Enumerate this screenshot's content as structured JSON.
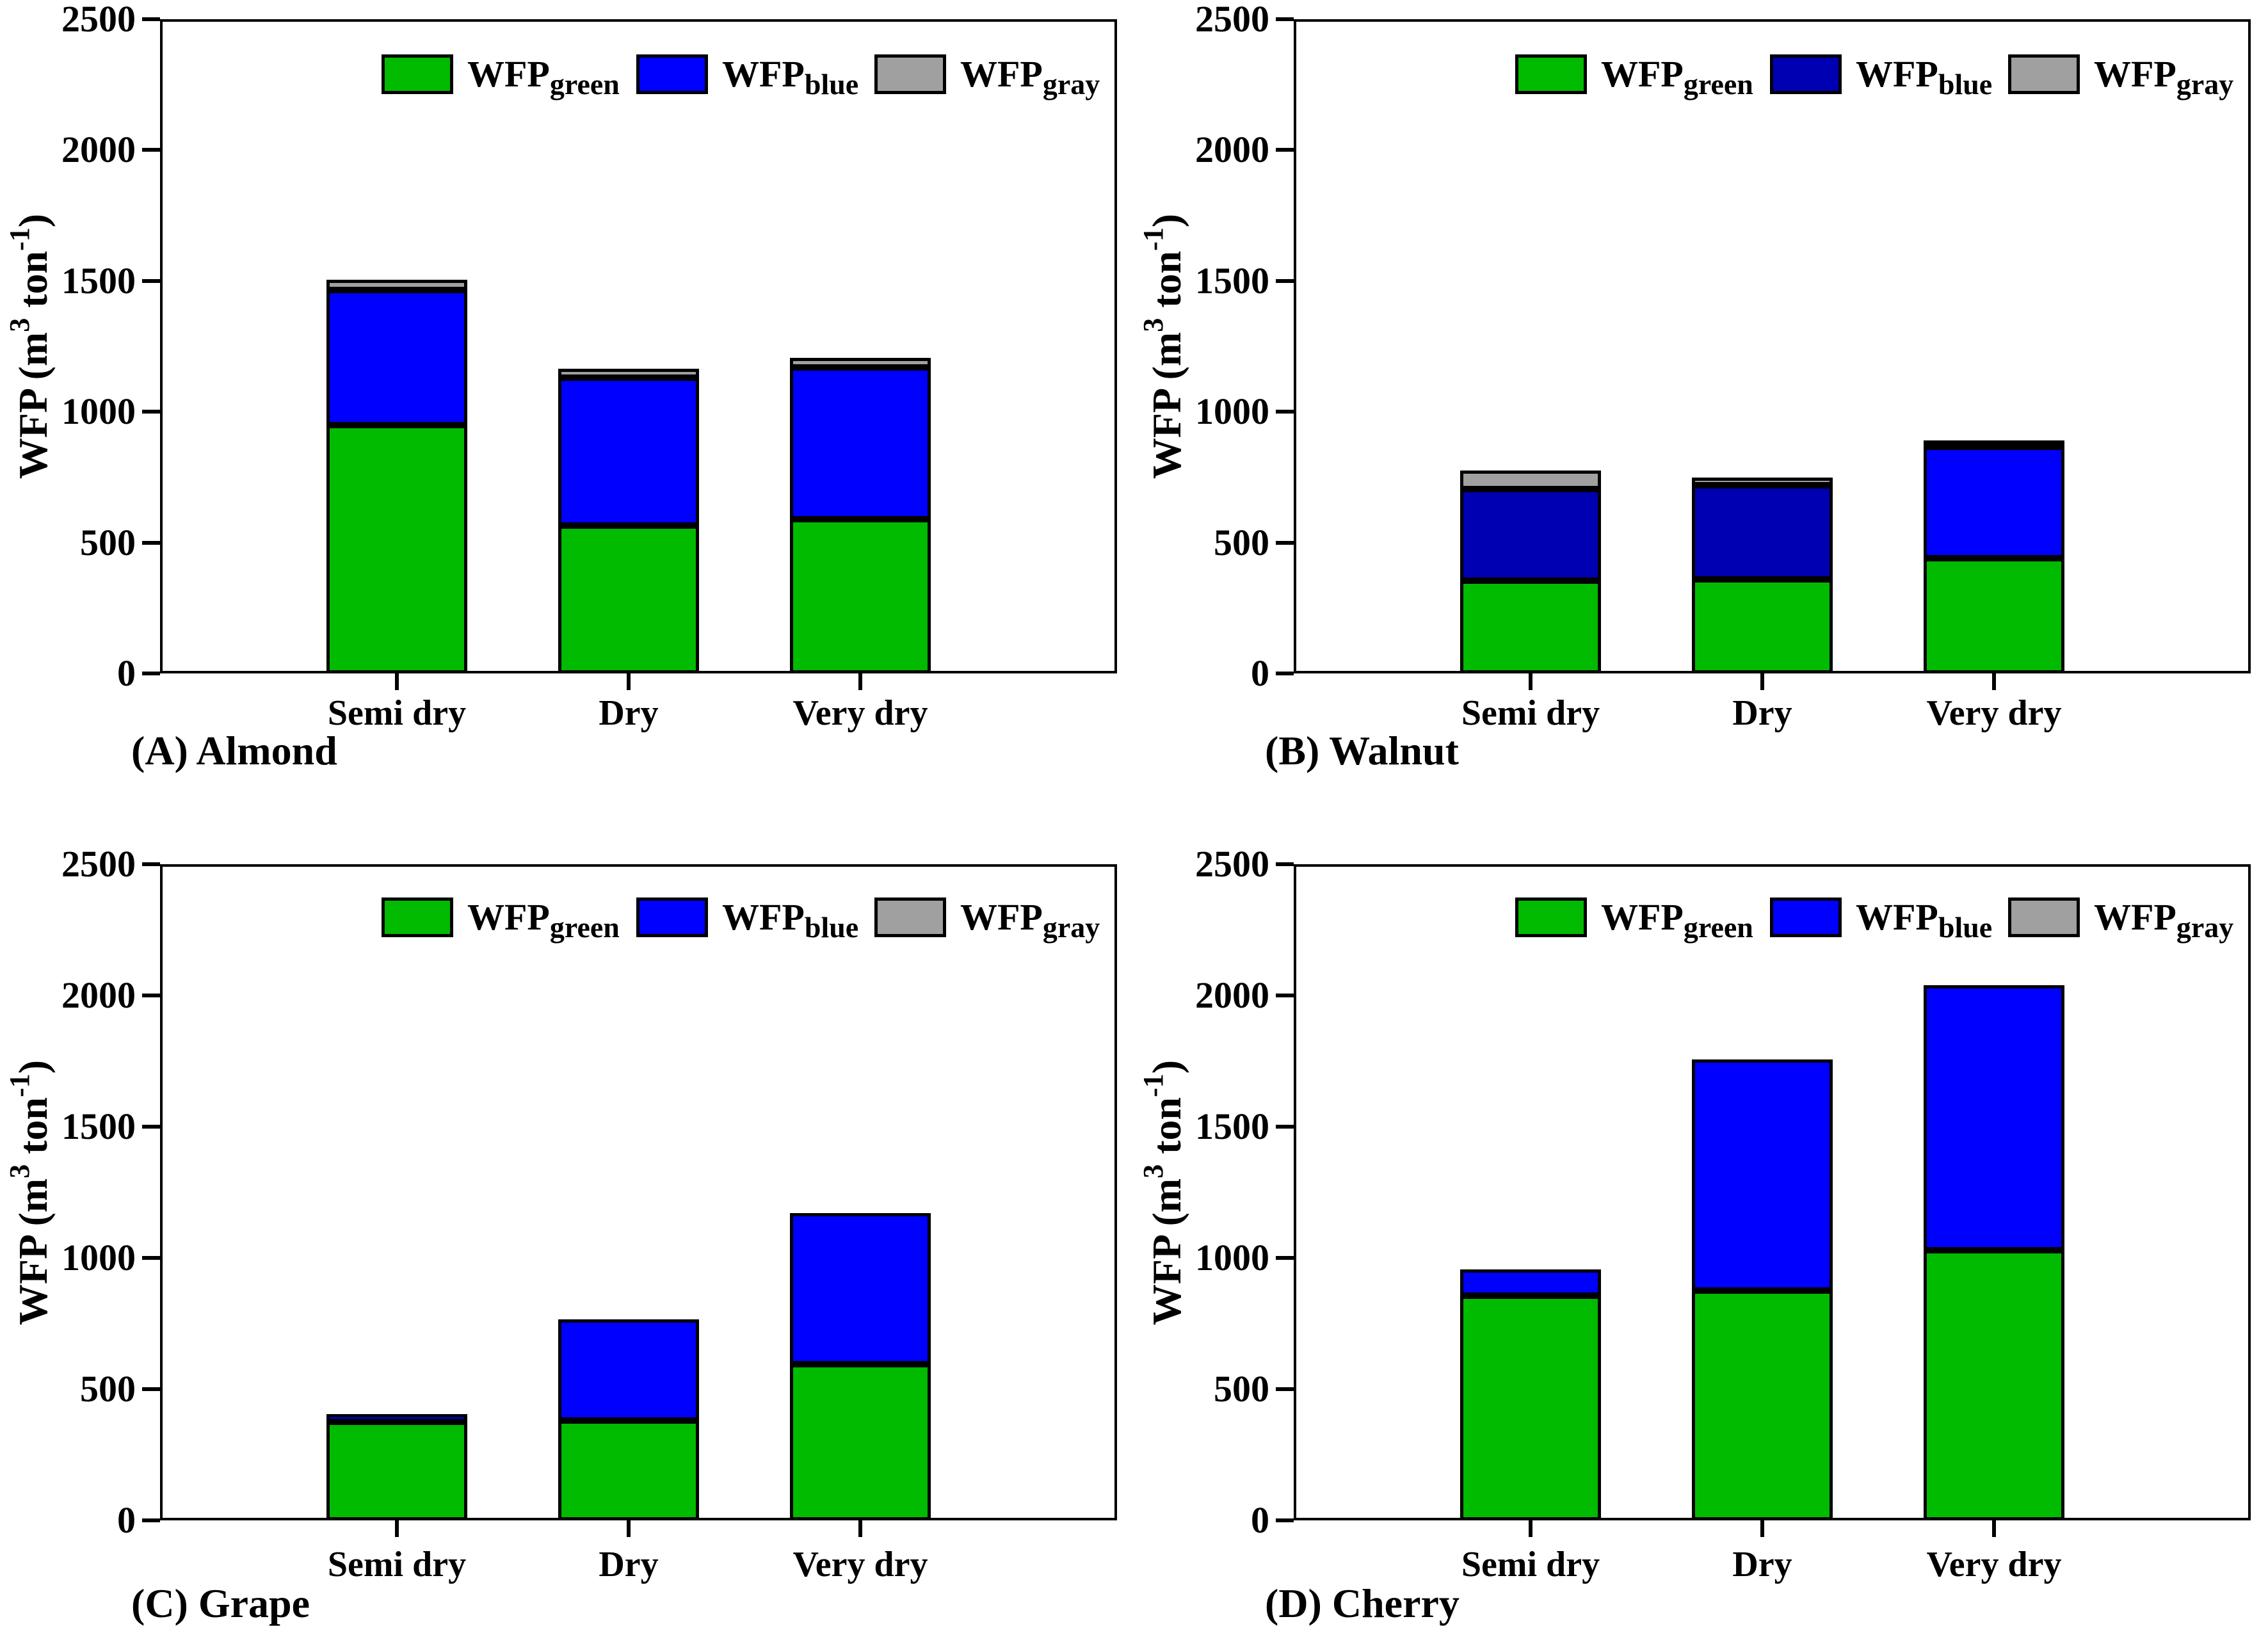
{
  "figure": {
    "background": "#FFFFFF",
    "ylabel": {
      "prefix": "WFP (m",
      "sup1": "3",
      "mid": " ton",
      "sup2": "-1",
      "suffix": ")"
    },
    "legend": {
      "entries": [
        {
          "label_main": "WFP",
          "label_sub": "green"
        },
        {
          "label_main": "WFP",
          "label_sub": "blue"
        },
        {
          "label_main": "WFP",
          "label_sub": "gray"
        }
      ],
      "position": "top"
    },
    "colors": {
      "green": "#00BB00",
      "blue": "#0000FF",
      "blue_dark": "#0000B3",
      "gray": "#A0A0A0",
      "axis": "#000000"
    }
  },
  "chart_data": [
    {
      "panel": "A",
      "caption": "(A) Almond",
      "type": "bar",
      "stacked": true,
      "grid": false,
      "categories": [
        "Semi dry",
        "Dry",
        "Very dry"
      ],
      "series": [
        {
          "name": "WFP_green",
          "color": "#00BB00",
          "values": [
            950,
            565,
            590
          ]
        },
        {
          "name": "WFP_blue",
          "color": "#0000FF",
          "values": [
            515,
            565,
            580
          ]
        },
        {
          "name": "WFP_gray",
          "color": "#A0A0A0",
          "values": [
            40,
            35,
            35
          ]
        }
      ],
      "ylabel": "WFP (m3 ton-1)",
      "ylim": [
        0,
        2500
      ],
      "yticks": [
        0,
        500,
        1000,
        1500,
        2000,
        2500
      ]
    },
    {
      "panel": "B",
      "caption": "(B) Walnut",
      "type": "bar",
      "stacked": true,
      "grid": false,
      "categories": [
        "Semi dry",
        "Dry",
        "Very dry"
      ],
      "series": [
        {
          "name": "WFP_green",
          "color": "#00BB00",
          "values": [
            355,
            360,
            440
          ]
        },
        {
          "name": "WFP_blue",
          "color": "#0000B3",
          "bar_colors": [
            "#0000B3",
            "#0000B3",
            "#0000FF"
          ],
          "values": [
            350,
            360,
            425
          ]
        },
        {
          "name": "WFP_gray",
          "color": "#A0A0A0",
          "values": [
            70,
            28,
            25
          ]
        }
      ],
      "ylabel": "WFP (m3 ton-1)",
      "ylim": [
        0,
        2500
      ],
      "yticks": [
        0,
        500,
        1000,
        1500,
        2000,
        2500
      ]
    },
    {
      "panel": "C",
      "caption": "(C) Grape",
      "type": "bar",
      "stacked": true,
      "grid": false,
      "categories": [
        "Semi dry",
        "Dry",
        "Very dry"
      ],
      "series": [
        {
          "name": "WFP_green",
          "color": "#00BB00",
          "values": [
            375,
            380,
            595
          ]
        },
        {
          "name": "WFP_blue",
          "color": "#0000FF",
          "values": [
            30,
            385,
            575
          ]
        },
        {
          "name": "WFP_gray",
          "color": "#A0A0A0",
          "values": [
            0,
            0,
            0
          ]
        }
      ],
      "ylabel": "WFP (m3 ton-1)",
      "ylim": [
        0,
        2500
      ],
      "yticks": [
        0,
        500,
        1000,
        1500,
        2000,
        2500
      ]
    },
    {
      "panel": "D",
      "caption": "(D) Cherry",
      "type": "bar",
      "stacked": true,
      "grid": false,
      "categories": [
        "Semi dry",
        "Dry",
        "Very dry"
      ],
      "series": [
        {
          "name": "WFP_green",
          "color": "#00BB00",
          "values": [
            855,
            875,
            1030
          ]
        },
        {
          "name": "WFP_blue",
          "color": "#0000FF",
          "values": [
            100,
            880,
            1010
          ]
        },
        {
          "name": "WFP_gray",
          "color": "#A0A0A0",
          "values": [
            0,
            0,
            0
          ]
        }
      ],
      "ylabel": "WFP (m3 ton-1)",
      "ylim": [
        0,
        2500
      ],
      "yticks": [
        0,
        500,
        1000,
        1500,
        2000,
        2500
      ]
    }
  ]
}
